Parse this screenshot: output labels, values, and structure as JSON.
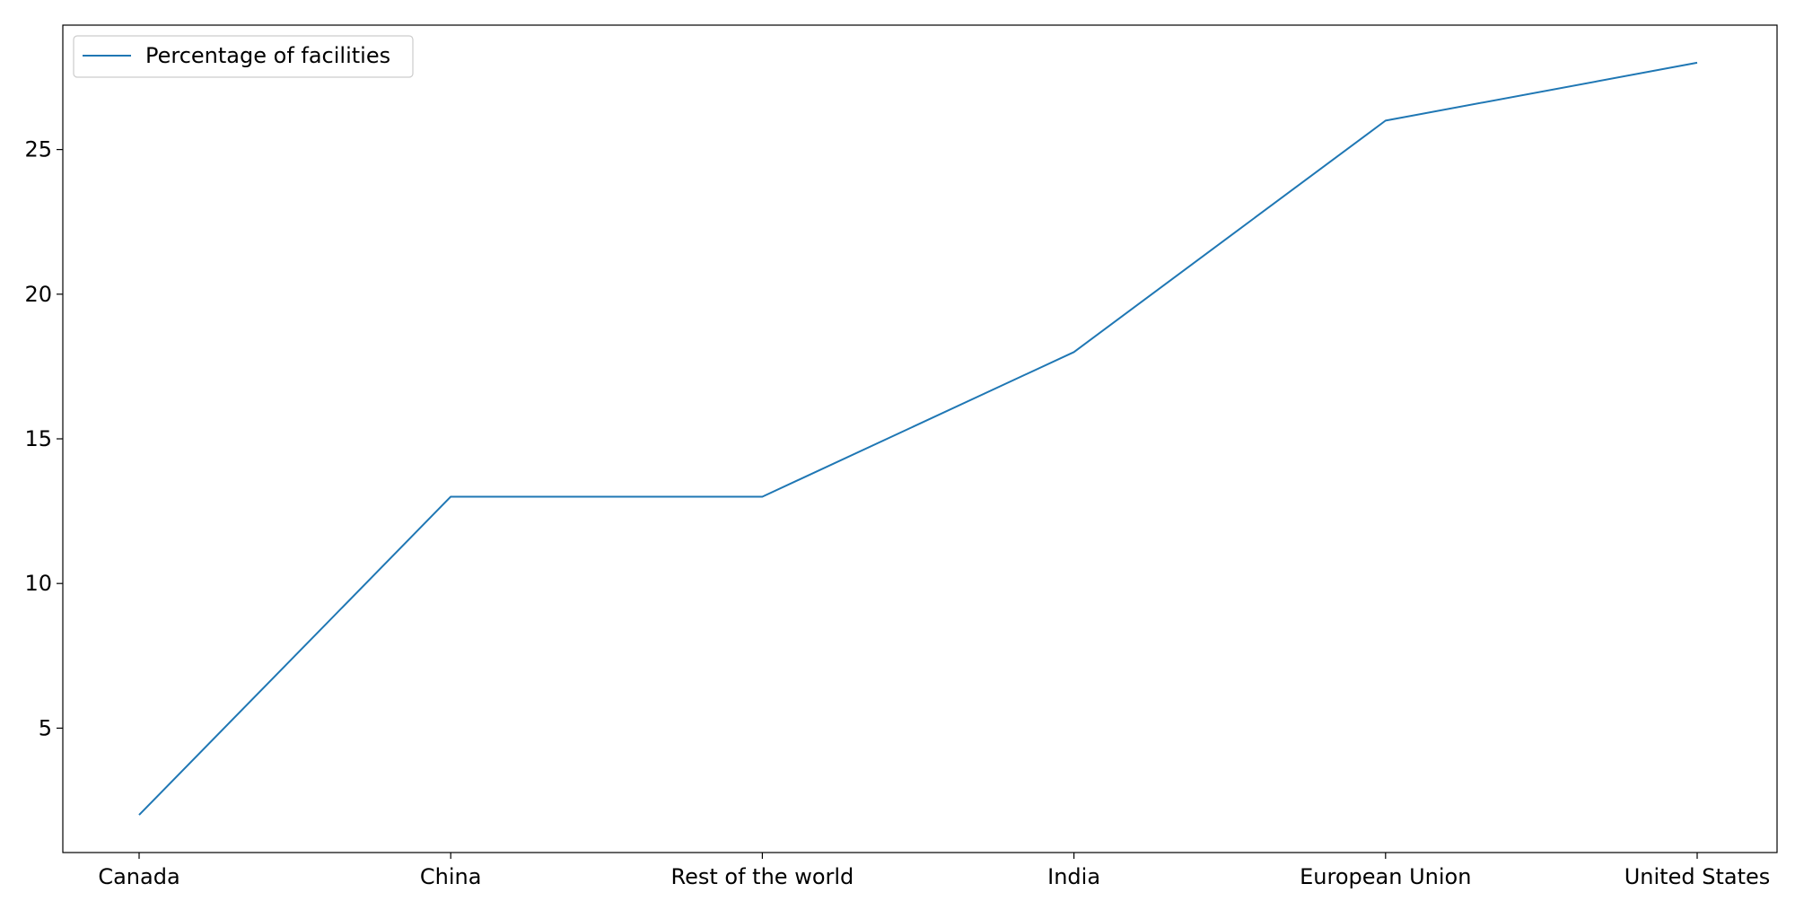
{
  "chart_data": {
    "type": "line",
    "title": "",
    "xlabel": "",
    "ylabel": "",
    "categories": [
      "Canada",
      "China",
      "Rest of the world",
      "India",
      "European Union",
      "United States"
    ],
    "series": [
      {
        "name": "Percentage of facilities",
        "values": [
          2,
          13,
          13,
          18,
          26,
          28
        ]
      }
    ],
    "ylim": [
      0.7,
      29.3
    ],
    "yticks": [
      5,
      10,
      15,
      20,
      25
    ],
    "grid": false,
    "legend": "upper-left",
    "colors": {
      "series": "#1f77b4",
      "axes": "#000000",
      "legend_border": "#cccccc"
    }
  }
}
